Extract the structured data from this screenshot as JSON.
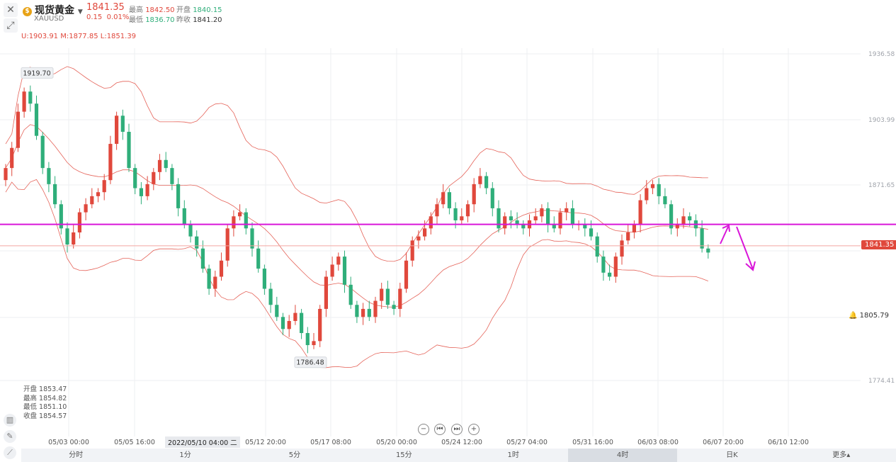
{
  "header": {
    "symbol_name": "现货黄金",
    "symbol_code": "XAUUSD",
    "last_price": "1841.35",
    "change": "0.15",
    "change_pct": "0.01%",
    "high_label": "最高",
    "high": "1842.50",
    "open_label": "开盘",
    "open": "1840.15",
    "low_label": "最低",
    "low": "1836.70",
    "prev_label": "昨收",
    "prev_close": "1841.20",
    "boll": "U:1903.91  M:1877.85  L:1851.39"
  },
  "price_tag": "1841.35",
  "alert_price": "1805.79",
  "ohlc_panel": {
    "open": "开盘 1853.47",
    "high": "最高 1854.82",
    "low": "最低 1851.10",
    "close": "收盘 1854.57"
  },
  "crosshair_x_label": "2022/05/10 04:00 二",
  "timeframes": [
    "分时",
    "1分",
    "5分",
    "15分",
    "1时",
    "4时",
    "日K",
    "更多▴"
  ],
  "active_timeframe": "4时",
  "chart_data": {
    "type": "candlestick",
    "y_ticks": [
      "1936.58",
      "1903.99",
      "1871.65",
      "1841.35",
      "1805.79",
      "1774.41"
    ],
    "x_ticks": [
      "05/03 00:00",
      "05/05 16:00",
      "05/12 20:00",
      "05/17 08:00",
      "05/20 00:00",
      "05/24 12:00",
      "05/27 04:00",
      "05/31 16:00",
      "06/03 08:00",
      "06/07 20:00",
      "06/10 12:00"
    ],
    "annotations": [
      "1919.70",
      "1786.48"
    ],
    "horizontal_line": 1852.0,
    "colors": {
      "up": "#e0483c",
      "down": "#2fae7a",
      "line": "#d916d9",
      "boll": "#e0483c"
    },
    "close": [
      1880,
      1890,
      1908,
      1918,
      1912,
      1896,
      1880,
      1872,
      1862,
      1850,
      1842,
      1848,
      1858,
      1862,
      1866,
      1868,
      1874,
      1892,
      1906,
      1898,
      1880,
      1870,
      1866,
      1872,
      1878,
      1884,
      1880,
      1872,
      1860,
      1852,
      1846,
      1840,
      1830,
      1820,
      1826,
      1834,
      1850,
      1856,
      1858,
      1850,
      1840,
      1830,
      1820,
      1812,
      1806,
      1800,
      1804,
      1808,
      1798,
      1792,
      1794,
      1810,
      1826,
      1832,
      1836,
      1822,
      1812,
      1806,
      1810,
      1806,
      1814,
      1820,
      1812,
      1810,
      1820,
      1834,
      1844,
      1846,
      1850,
      1856,
      1862,
      1868,
      1860,
      1854,
      1856,
      1862,
      1872,
      1876,
      1870,
      1860,
      1850,
      1856,
      1854,
      1852,
      1850,
      1854,
      1856,
      1860,
      1852,
      1850,
      1858,
      1860,
      1852,
      1852,
      1850,
      1846,
      1836,
      1828,
      1826,
      1836,
      1844,
      1848,
      1852,
      1864,
      1870,
      1872,
      1866,
      1862,
      1850,
      1852,
      1856,
      1854,
      1850,
      1840,
      1838
    ]
  }
}
